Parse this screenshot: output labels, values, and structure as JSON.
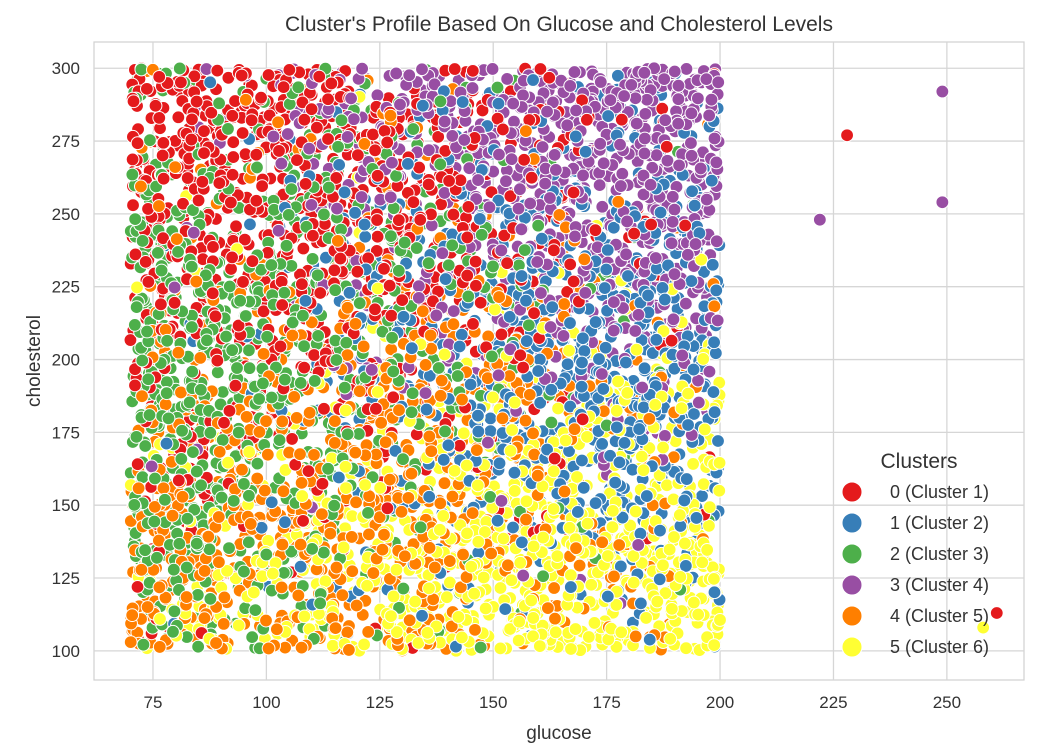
{
  "chart_data": {
    "type": "scatter",
    "title": "Cluster's Profile Based On Glucose and Cholesterol Levels",
    "xlabel": "glucose",
    "ylabel": "cholesterol",
    "xlim": [
      62,
      267
    ],
    "ylim": [
      90,
      309
    ],
    "xticks": [
      "75",
      "100",
      "125",
      "150",
      "175",
      "200",
      "225",
      "250"
    ],
    "yticks": [
      "100",
      "125",
      "150",
      "175",
      "200",
      "225",
      "250",
      "275",
      "300"
    ],
    "grid": true,
    "legend": {
      "title": "Clusters",
      "placement": "bottom-right",
      "entries": [
        "0 (Cluster 1)",
        "1 (Cluster 2)",
        "2 (Cluster 3)",
        "3 (Cluster 4)",
        "4 (Cluster 5)",
        "5 (Cluster 6)"
      ]
    },
    "colors": [
      "#e41a1c",
      "#377eb8",
      "#4daf4a",
      "#984ea3",
      "#ff7f00",
      "#ffff33"
    ],
    "dense_region": {
      "x_range": [
        70,
        200
      ],
      "y_range": [
        100,
        300
      ],
      "approx_point_count": 5500,
      "cluster_centers": [
        {
          "cluster": 0,
          "x": 110,
          "y": 235
        },
        {
          "cluster": 1,
          "x": 165,
          "y": 205
        },
        {
          "cluster": 2,
          "x": 100,
          "y": 200
        },
        {
          "cluster": 3,
          "x": 170,
          "y": 260
        },
        {
          "cluster": 4,
          "x": 125,
          "y": 170
        },
        {
          "cluster": 5,
          "x": 160,
          "y": 130
        }
      ]
    },
    "outliers": [
      {
        "x": 228,
        "y": 277,
        "cluster": 0
      },
      {
        "x": 249,
        "y": 292,
        "cluster": 3
      },
      {
        "x": 249,
        "y": 254,
        "cluster": 3
      },
      {
        "x": 222,
        "y": 248,
        "cluster": 3
      },
      {
        "x": 261,
        "y": 113,
        "cluster": 0
      },
      {
        "x": 258,
        "y": 108,
        "cluster": 5
      }
    ]
  }
}
